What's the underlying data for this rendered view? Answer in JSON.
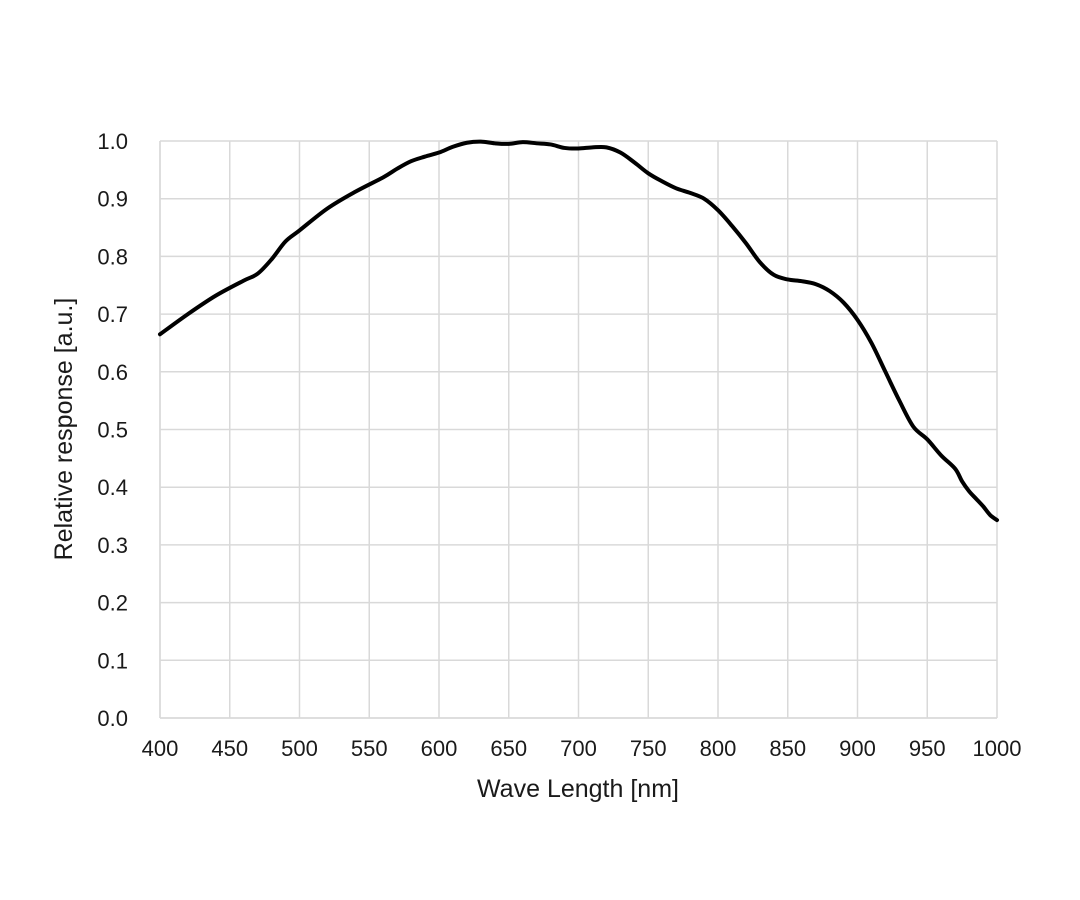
{
  "chart_data": {
    "type": "line",
    "xlabel": "Wave Length [nm]",
    "ylabel": "Relative response [a.u.]",
    "xlim": [
      400,
      1000
    ],
    "ylim": [
      0.0,
      1.0
    ],
    "x_ticks": [
      "400",
      "450",
      "500",
      "550",
      "600",
      "650",
      "700",
      "750",
      "800",
      "850",
      "900",
      "950",
      "1000"
    ],
    "y_ticks": [
      "0.0",
      "0.1",
      "0.2",
      "0.3",
      "0.4",
      "0.5",
      "0.6",
      "0.7",
      "0.8",
      "0.9",
      "1.0"
    ],
    "grid": true,
    "line_color": "#000000",
    "series": [
      {
        "x": [
          400,
          420,
          440,
          460,
          470,
          480,
          490,
          500,
          520,
          540,
          560,
          570,
          580,
          590,
          600,
          610,
          620,
          630,
          640,
          650,
          660,
          670,
          680,
          690,
          700,
          710,
          720,
          730,
          740,
          750,
          760,
          770,
          780,
          790,
          800,
          810,
          820,
          830,
          840,
          850,
          860,
          870,
          880,
          890,
          900,
          910,
          920,
          930,
          940,
          950,
          960,
          970,
          975,
          980,
          985,
          990,
          995,
          1000
        ],
        "y": [
          0.665,
          0.7,
          0.732,
          0.758,
          0.77,
          0.795,
          0.826,
          0.845,
          0.883,
          0.912,
          0.937,
          0.952,
          0.965,
          0.973,
          0.98,
          0.99,
          0.997,
          0.999,
          0.996,
          0.995,
          0.998,
          0.996,
          0.994,
          0.988,
          0.987,
          0.989,
          0.989,
          0.98,
          0.963,
          0.944,
          0.93,
          0.918,
          0.91,
          0.9,
          0.88,
          0.853,
          0.823,
          0.79,
          0.768,
          0.76,
          0.757,
          0.752,
          0.74,
          0.72,
          0.69,
          0.65,
          0.6,
          0.55,
          0.505,
          0.483,
          0.455,
          0.432,
          0.41,
          0.393,
          0.38,
          0.367,
          0.352,
          0.343
        ]
      }
    ]
  }
}
